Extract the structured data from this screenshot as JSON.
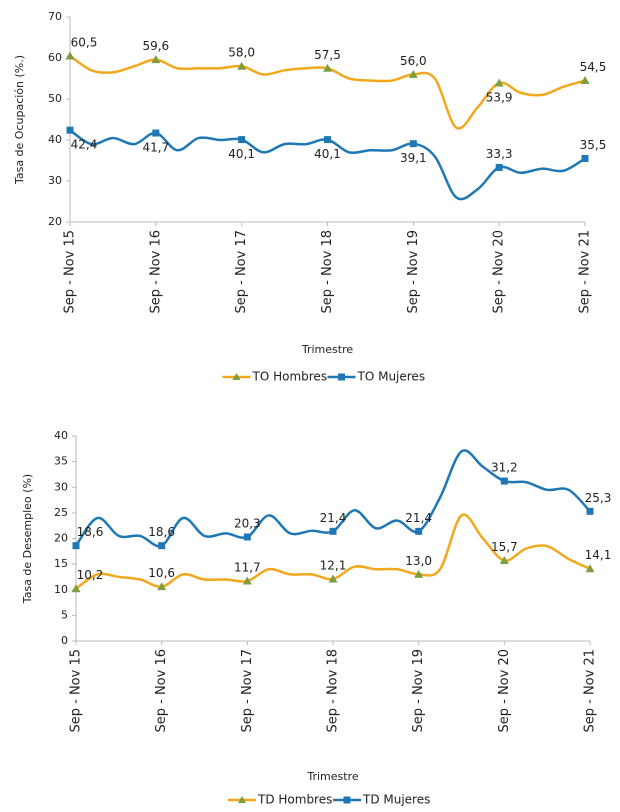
{
  "chart_data": [
    {
      "type": "line",
      "y_label": "Tasa de Ocupación (%.)",
      "x_label": "Trimestre",
      "categories": [
        "Sep - Nov 15",
        null,
        null,
        null,
        "Sep - Nov 16",
        null,
        null,
        null,
        "Sep - Nov 17",
        null,
        null,
        null,
        "Sep - Nov 18",
        null,
        null,
        null,
        "Sep - Nov 19",
        null,
        null,
        null,
        "Sep - Nov 20",
        null,
        null,
        null,
        "Sep - Nov 21"
      ],
      "ylim": [
        20,
        70
      ],
      "yticks": [
        20,
        30,
        40,
        50,
        60,
        70
      ],
      "series": [
        {
          "name": "TO Hombres",
          "color": "#f2a81d",
          "marker": "triangle",
          "marker_color": "#7f9e3c",
          "values": [
            60.5,
            57,
            56.5,
            58,
            59.6,
            57.5,
            57.5,
            57.5,
            58.0,
            56,
            57,
            57.5,
            57.5,
            55,
            54.5,
            54.5,
            56.0,
            55,
            43,
            48,
            53.9,
            51.5,
            51,
            53,
            54.5
          ],
          "value_labels": [
            "60,5",
            null,
            null,
            null,
            "59,6",
            null,
            null,
            null,
            "58,0",
            null,
            null,
            null,
            "57,5",
            null,
            null,
            null,
            "56,0",
            null,
            null,
            null,
            "53,9",
            null,
            null,
            null,
            "54,5"
          ]
        },
        {
          "name": "TO Mujeres",
          "color": "#1f78b4",
          "marker": "square",
          "marker_color": "#1f78b4",
          "values": [
            42.4,
            39,
            40.5,
            39,
            41.7,
            37.5,
            40.5,
            40,
            40.1,
            37,
            39,
            39,
            40.1,
            37,
            37.5,
            37.5,
            39.1,
            36,
            26,
            28,
            33.3,
            32,
            33,
            32.5,
            35.5
          ],
          "value_labels": [
            "42,4",
            null,
            null,
            null,
            "41,7",
            null,
            null,
            null,
            "40,1",
            null,
            null,
            null,
            "40,1",
            null,
            null,
            null,
            "39,1",
            null,
            null,
            null,
            "33,3",
            null,
            null,
            null,
            "35,5"
          ]
        }
      ]
    },
    {
      "type": "line",
      "y_label": "Tasa de Desempleo (%)",
      "x_label": "Trimestre",
      "categories": [
        "Sep - Nov 15",
        null,
        null,
        null,
        "Sep - Nov 16",
        null,
        null,
        null,
        "Sep - Nov 17",
        null,
        null,
        null,
        "Sep - Nov 18",
        null,
        null,
        null,
        "Sep - Nov 19",
        null,
        null,
        null,
        "Sep - Nov 20",
        null,
        null,
        null,
        "Sep - Nov 21"
      ],
      "ylim": [
        0,
        40
      ],
      "yticks": [
        0,
        5,
        10,
        15,
        20,
        25,
        30,
        35,
        40
      ],
      "series": [
        {
          "name": "TD Hombres",
          "color": "#f2a81d",
          "marker": "triangle",
          "marker_color": "#7f9e3c",
          "values": [
            10.2,
            13,
            12.5,
            12,
            10.6,
            13,
            12,
            12,
            11.7,
            14,
            13,
            13,
            12.1,
            14.5,
            14,
            14,
            13.0,
            14,
            24.5,
            20,
            15.7,
            18,
            18.5,
            16,
            14.1
          ],
          "value_labels": [
            "10,2",
            null,
            null,
            null,
            "10,6",
            null,
            null,
            null,
            "11,7",
            null,
            null,
            null,
            "12,1",
            null,
            null,
            null,
            "13,0",
            null,
            null,
            null,
            "15,7",
            null,
            null,
            null,
            "14,1"
          ]
        },
        {
          "name": "TD Mujeres",
          "color": "#1f78b4",
          "marker": "square",
          "marker_color": "#1f78b4",
          "values": [
            18.6,
            24,
            20.5,
            20.5,
            18.6,
            24,
            20.5,
            21,
            20.3,
            24.5,
            21,
            21.5,
            21.4,
            25.5,
            22,
            23.5,
            21.4,
            28,
            37,
            34,
            31.2,
            31,
            29.5,
            29.5,
            25.3
          ],
          "value_labels": [
            "18,6",
            null,
            null,
            null,
            "18,6",
            null,
            null,
            null,
            "20,3",
            null,
            null,
            null,
            "21,4",
            null,
            null,
            null,
            "21,4",
            null,
            null,
            null,
            "31,2",
            null,
            null,
            null,
            "25,3"
          ]
        }
      ]
    }
  ]
}
